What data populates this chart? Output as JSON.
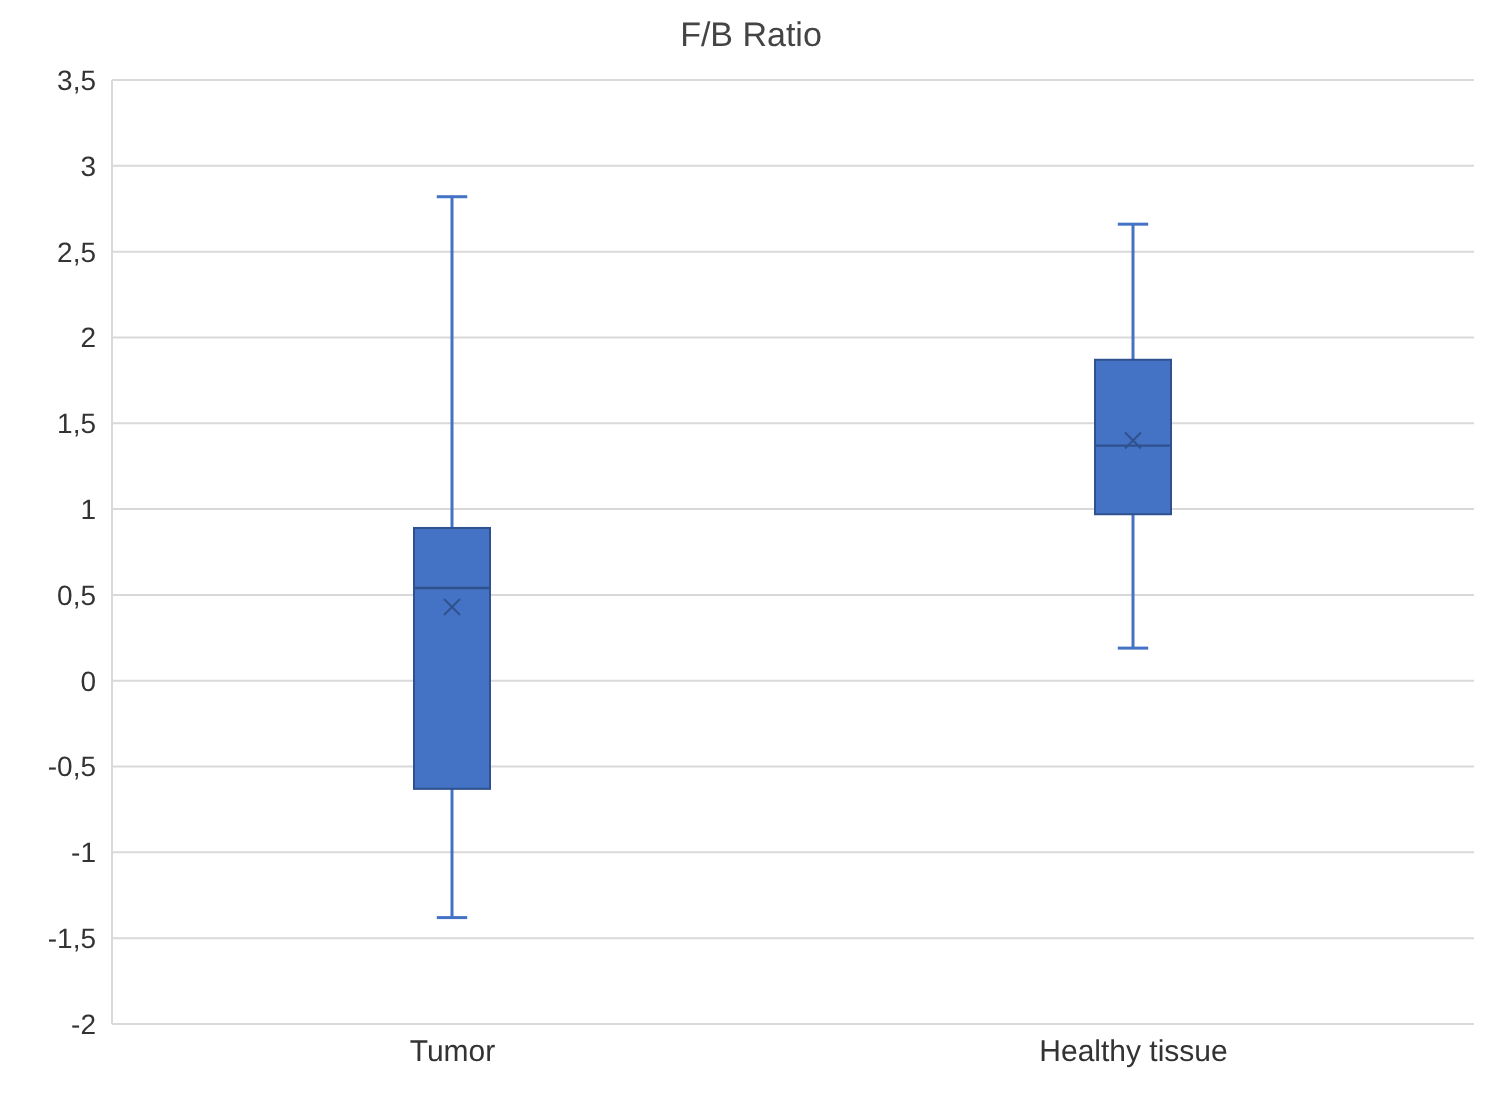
{
  "chart_data": {
    "type": "box",
    "title": "F/B Ratio",
    "categories": [
      "Tumor",
      "Healthy tissue"
    ],
    "boxes": [
      {
        "low": -1.38,
        "q1": -0.63,
        "median": 0.54,
        "q3": 0.89,
        "high": 2.82,
        "mean": 0.43
      },
      {
        "low": 0.19,
        "q1": 0.97,
        "median": 1.37,
        "q3": 1.87,
        "high": 2.66,
        "mean": 1.4
      }
    ],
    "color": "#4472c4",
    "ylim": [
      -2,
      3.5
    ],
    "yticks": [
      {
        "value": -2,
        "label": "-2"
      },
      {
        "value": -1.5,
        "label": "-1,5"
      },
      {
        "value": -1,
        "label": "-1"
      },
      {
        "value": -0.5,
        "label": "-0,5"
      },
      {
        "value": 0,
        "label": "0"
      },
      {
        "value": 0.5,
        "label": "0,5"
      },
      {
        "value": 1,
        "label": "1"
      },
      {
        "value": 1.5,
        "label": "1,5"
      },
      {
        "value": 2,
        "label": "2"
      },
      {
        "value": 2.5,
        "label": "2,5"
      },
      {
        "value": 3,
        "label": "3"
      },
      {
        "value": 3.5,
        "label": "3,5"
      }
    ],
    "grid": "y"
  }
}
